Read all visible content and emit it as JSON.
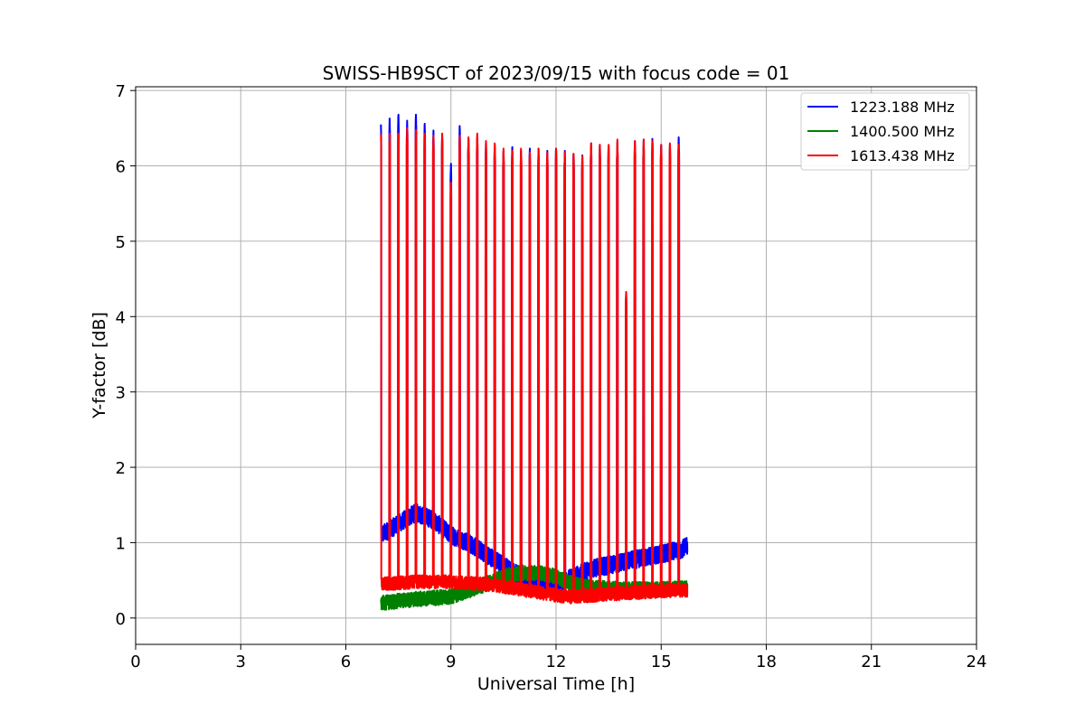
{
  "chart_data": {
    "type": "line",
    "title": "SWISS-HB9SCT of 2023/09/15 with focus code = 01",
    "xlabel": "Universal Time [h]",
    "ylabel": "Y-factor [dB]",
    "xlim": [
      0,
      24
    ],
    "ylim": [
      -0.35,
      7.05
    ],
    "xticks": [
      0,
      3,
      6,
      9,
      12,
      15,
      18,
      21,
      24
    ],
    "xtick_labels": [
      "0",
      "3",
      "6",
      "9",
      "12",
      "15",
      "18",
      "21",
      "24"
    ],
    "yticks": [
      0,
      1,
      2,
      3,
      4,
      5,
      6,
      7
    ],
    "ytick_labels": [
      "0",
      "1",
      "2",
      "3",
      "4",
      "5",
      "6",
      "7"
    ],
    "grid": true,
    "legend_position": "top-right",
    "x_range_observed": [
      7.0,
      15.75
    ],
    "burst_times": [
      7.0,
      7.25,
      7.5,
      7.75,
      8.0,
      8.25,
      8.5,
      8.75,
      9.0,
      9.25,
      9.5,
      9.75,
      10.0,
      10.25,
      10.5,
      10.75,
      11.0,
      11.25,
      11.5,
      11.75,
      12.0,
      12.25,
      12.5,
      12.75,
      13.0,
      13.25,
      13.5,
      13.75,
      14.0,
      14.25,
      14.5,
      14.75,
      15.0,
      15.25,
      15.5
    ],
    "series": [
      {
        "name": "1223.188 MHz",
        "color": "#0000ff",
        "baseline": {
          "x": [
            7.0,
            7.5,
            8.0,
            8.5,
            9.0,
            9.5,
            10.0,
            10.5,
            11.0,
            11.5,
            12.0,
            12.5,
            13.0,
            13.5,
            14.0,
            14.5,
            15.0,
            15.5,
            15.75
          ],
          "y": [
            1.1,
            1.25,
            1.4,
            1.3,
            1.1,
            1.0,
            0.85,
            0.7,
            0.55,
            0.45,
            0.45,
            0.55,
            0.65,
            0.7,
            0.75,
            0.8,
            0.85,
            0.9,
            0.95
          ]
        },
        "noise": 0.12,
        "peaks": [
          6.55,
          6.65,
          6.7,
          6.6,
          6.7,
          6.58,
          6.47,
          6.4,
          6.05,
          6.53,
          6.38,
          6.4,
          6.32,
          6.28,
          6.22,
          6.25,
          6.22,
          6.25,
          6.23,
          6.22,
          6.25,
          6.2,
          6.18,
          6.16,
          6.3,
          6.3,
          6.28,
          6.32,
          4.3,
          6.35,
          6.35,
          6.38,
          6.3,
          6.28,
          6.4
        ]
      },
      {
        "name": "1400.500 MHz",
        "color": "#008000",
        "baseline": {
          "x": [
            7.0,
            8.0,
            9.0,
            10.0,
            10.5,
            11.0,
            11.5,
            12.0,
            12.5,
            13.0,
            14.0,
            15.0,
            15.75
          ],
          "y": [
            0.2,
            0.25,
            0.28,
            0.45,
            0.55,
            0.6,
            0.6,
            0.55,
            0.45,
            0.4,
            0.38,
            0.38,
            0.4
          ]
        },
        "noise": 0.1,
        "peaks": null
      },
      {
        "name": "1613.438 MHz",
        "color": "#ff0000",
        "baseline": {
          "x": [
            7.0,
            8.0,
            9.0,
            10.0,
            11.0,
            12.0,
            12.5,
            13.0,
            14.0,
            15.0,
            15.75
          ],
          "y": [
            0.45,
            0.48,
            0.48,
            0.45,
            0.38,
            0.3,
            0.28,
            0.3,
            0.33,
            0.36,
            0.37
          ]
        },
        "noise": 0.09,
        "peaks": [
          6.42,
          6.45,
          6.45,
          6.5,
          6.5,
          6.45,
          6.4,
          6.45,
          5.8,
          6.4,
          6.4,
          6.45,
          6.33,
          6.32,
          6.25,
          6.2,
          6.25,
          6.2,
          6.23,
          6.2,
          6.25,
          6.18,
          6.18,
          6.15,
          6.3,
          6.3,
          6.3,
          6.35,
          4.35,
          6.35,
          6.35,
          6.35,
          6.3,
          6.3,
          6.3
        ]
      }
    ]
  }
}
